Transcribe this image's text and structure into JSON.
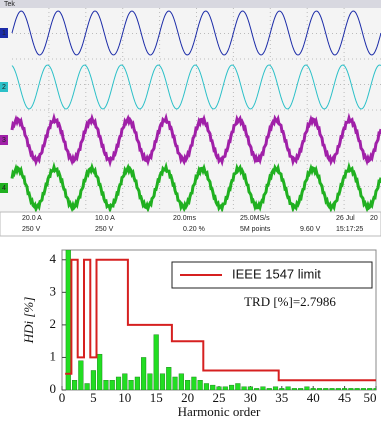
{
  "scope": {
    "header": "Tek",
    "channels": [
      "1",
      "2",
      "3",
      "4"
    ],
    "readouts": {
      "ch1": "20.0 A",
      "ch2": "10.0 A",
      "ch3": "250 V",
      "ch4": "250 V",
      "time_div": "20.0ms",
      "sample_rate": "25.0MS/s",
      "record": "5M points",
      "offset": "0.20 %",
      "trigger": "9.60 V",
      "date": "26 Jul",
      "year": "20",
      "time": "15:17:25"
    }
  },
  "chart_data": {
    "type": "bar",
    "ylabel": "HDi [%]",
    "xlabel": "Harmonic order",
    "annotation": "TRD [%]=2.7986",
    "x": [
      1,
      2,
      3,
      4,
      5,
      6,
      7,
      8,
      9,
      10,
      11,
      12,
      13,
      14,
      15,
      16,
      17,
      18,
      19,
      20,
      21,
      22,
      23,
      24,
      25,
      26,
      27,
      28,
      29,
      30,
      31,
      32,
      33,
      34,
      35,
      36,
      37,
      38,
      39,
      40,
      41,
      42,
      43,
      44,
      45,
      46,
      47,
      48,
      49,
      50
    ],
    "values": [
      4.3,
      0.3,
      0.9,
      0.2,
      0.6,
      1.1,
      0.3,
      0.3,
      0.4,
      0.5,
      0.3,
      0.4,
      1.0,
      0.5,
      1.7,
      0.5,
      0.7,
      0.4,
      0.5,
      0.3,
      0.4,
      0.3,
      0.2,
      0.15,
      0.1,
      0.1,
      0.15,
      0.2,
      0.1,
      0.1,
      0.05,
      0.1,
      0.05,
      0.1,
      0.05,
      0.1,
      0.05,
      0.05,
      0.1,
      0.05,
      0.05,
      0.05,
      0.05,
      0.05,
      0.05,
      0.05,
      0.05,
      0.05,
      0.05,
      0.05
    ],
    "color": "#22dd22",
    "lines": [
      {
        "name": "IEEE 1547 limit",
        "color": "#d62020",
        "x": [
          0.5,
          1.5,
          1.5,
          2.5,
          2.5,
          3.5,
          3.5,
          4.5,
          4.5,
          5.5,
          5.5,
          10.5,
          10.5,
          17.5,
          17.5,
          22.5,
          22.5,
          34.5,
          34.5,
          50
        ],
        "values": [
          0.5,
          0.5,
          4,
          4,
          1,
          1,
          4,
          4,
          1,
          1,
          4,
          4,
          2,
          2,
          1.5,
          1.5,
          0.6,
          0.6,
          0.3,
          0.3
        ]
      }
    ],
    "xlim": [
      0,
      50
    ],
    "xticks": [
      0,
      5,
      10,
      15,
      20,
      25,
      30,
      35,
      40,
      45,
      50
    ],
    "ylim": [
      0,
      4.3
    ],
    "yticks": [
      0,
      1,
      2,
      3,
      4
    ],
    "legend": "upper right"
  }
}
